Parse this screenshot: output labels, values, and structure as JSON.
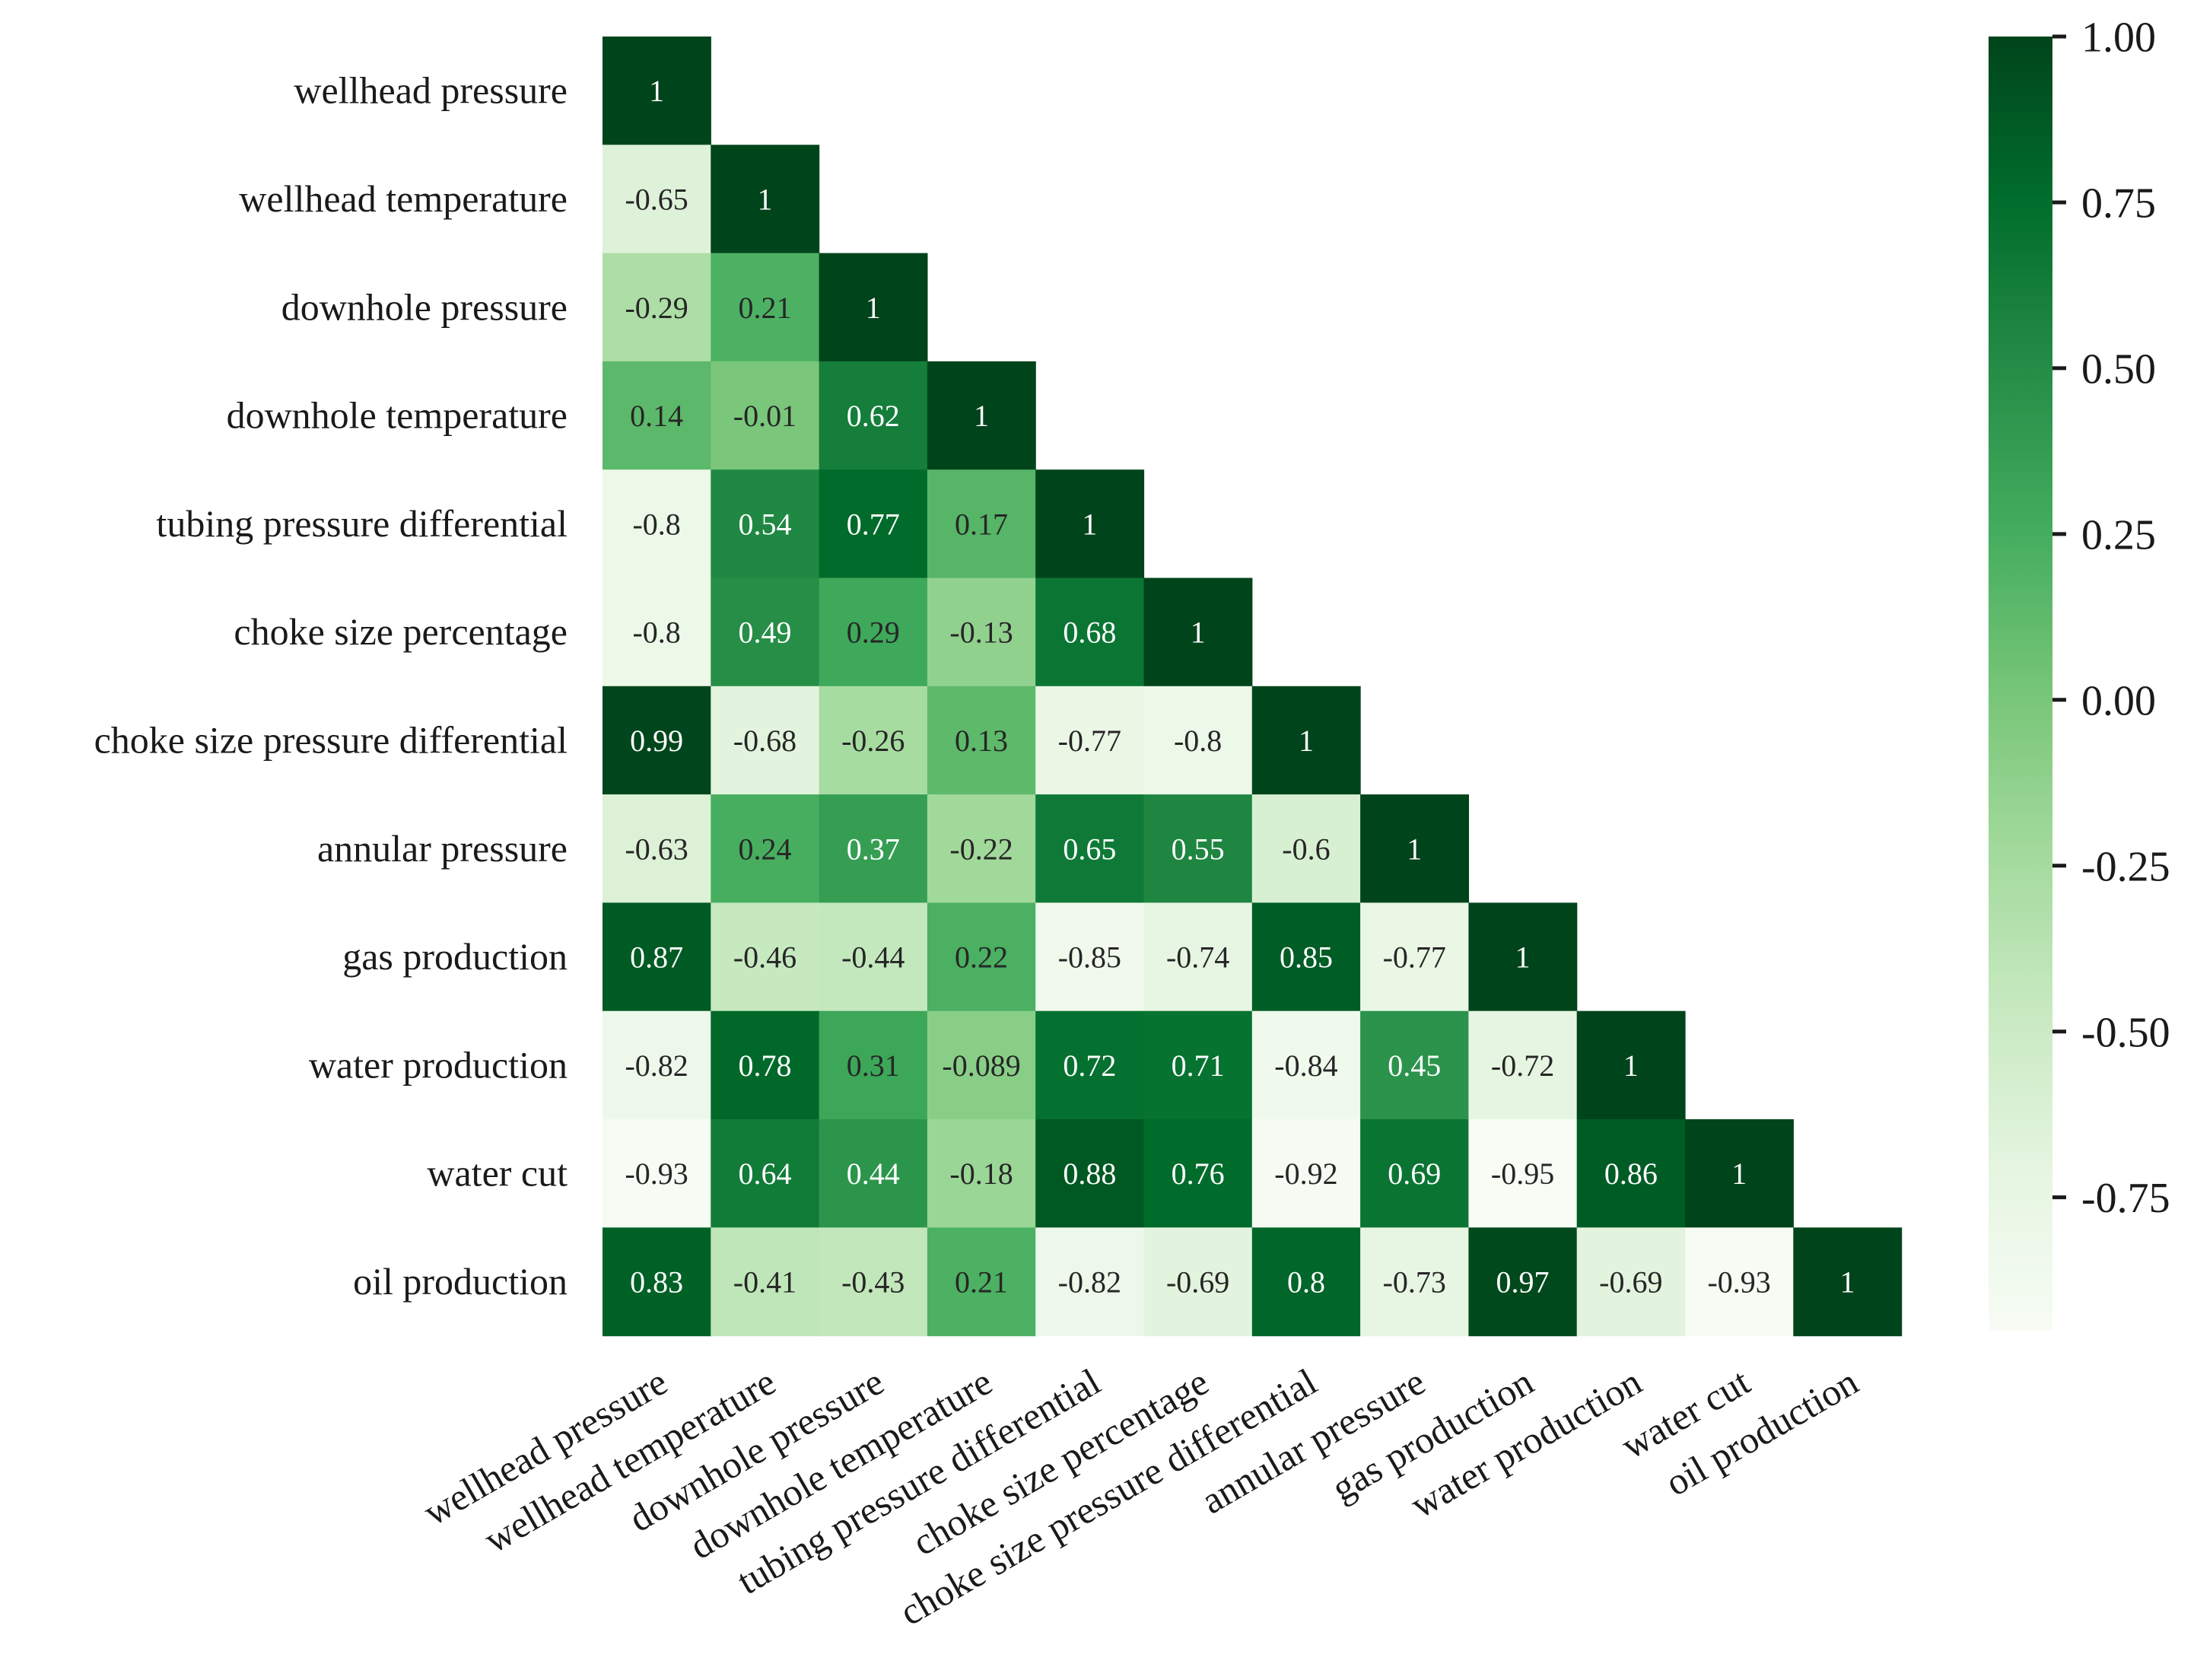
{
  "chart_data": {
    "type": "heatmap",
    "variant": "lower-triangular correlation matrix",
    "title": "",
    "xlabel": "",
    "ylabel": "",
    "color_scheme": "Greens",
    "variables": [
      "wellhead pressure",
      "wellhead temperature",
      "downhole pressure",
      "downhole temperature",
      "tubing pressure differential",
      "choke size percentage",
      "choke size pressure differential",
      "annular pressure",
      "gas production",
      "water production",
      "water cut",
      "oil production"
    ],
    "matrix": [
      [
        "1"
      ],
      [
        "-0.65",
        "1"
      ],
      [
        "-0.29",
        "0.21",
        "1"
      ],
      [
        "0.14",
        "-0.01",
        "0.62",
        "1"
      ],
      [
        "-0.8",
        "0.54",
        "0.77",
        "0.17",
        "1"
      ],
      [
        "-0.8",
        "0.49",
        "0.29",
        "-0.13",
        "0.68",
        "1"
      ],
      [
        "0.99",
        "-0.68",
        "-0.26",
        "0.13",
        "-0.77",
        "-0.8",
        "1"
      ],
      [
        "-0.63",
        "0.24",
        "0.37",
        "-0.22",
        "0.65",
        "0.55",
        "-0.6",
        "1"
      ],
      [
        "0.87",
        "-0.46",
        "-0.44",
        "0.22",
        "-0.85",
        "-0.74",
        "0.85",
        "-0.77",
        "1"
      ],
      [
        "-0.82",
        "0.78",
        "0.31",
        "-0.089",
        "0.72",
        "0.71",
        "-0.84",
        "0.45",
        "-0.72",
        "1"
      ],
      [
        "-0.93",
        "0.64",
        "0.44",
        "-0.18",
        "0.88",
        "0.76",
        "-0.92",
        "0.69",
        "-0.95",
        "0.86",
        "1"
      ],
      [
        "0.83",
        "-0.41",
        "-0.43",
        "0.21",
        "-0.82",
        "-0.69",
        "0.8",
        "-0.73",
        "0.97",
        "-0.69",
        "-0.93",
        "1"
      ]
    ],
    "colorbar": {
      "range": [
        -0.95,
        1.0
      ],
      "ticks": [
        1.0,
        0.75,
        0.5,
        0.25,
        0.0,
        -0.25,
        -0.5,
        -0.75
      ],
      "tick_labels": [
        "1.00",
        "0.75",
        "0.50",
        "0.25",
        "0.00",
        "-0.25",
        "-0.50",
        "-0.75"
      ],
      "colors": [
        "#f7fcf5",
        "#e5f5e0",
        "#c7e9c0",
        "#a1d99b",
        "#74c476",
        "#41ab5d",
        "#238b45",
        "#006d2c",
        "#00441b"
      ]
    },
    "annotation_colors": {
      "dark_text": "#262626",
      "light_text": "#ffffff"
    }
  }
}
